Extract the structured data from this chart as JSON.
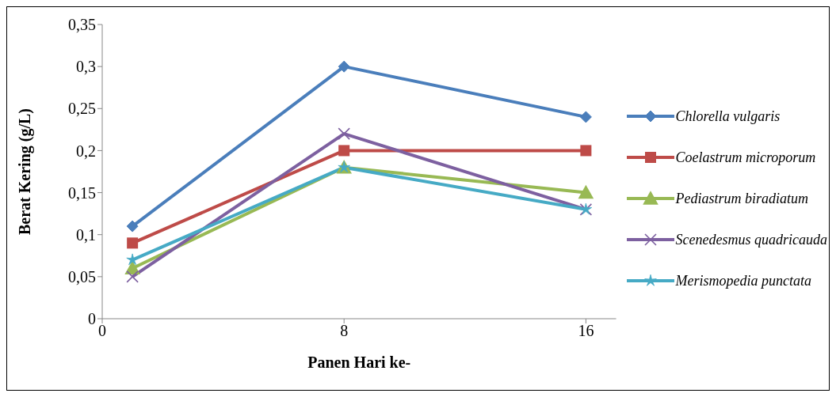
{
  "chart_data": {
    "type": "line",
    "xlabel": "Panen Hari ke-",
    "ylabel": "Berat Kering (g/L)",
    "x": [
      1,
      8,
      16
    ],
    "series": [
      {
        "name": "Chlorella vulgaris",
        "color": "#4a7ebb",
        "marker": "diamond",
        "values": [
          0.11,
          0.3,
          0.24
        ]
      },
      {
        "name": "Coelastrum microporum",
        "color": "#be4b48",
        "marker": "square",
        "values": [
          0.09,
          0.2,
          0.2
        ]
      },
      {
        "name": "Pediastrum biradiatum",
        "color": "#98b954",
        "marker": "triangle",
        "values": [
          0.06,
          0.18,
          0.15
        ]
      },
      {
        "name": "Scenedesmus quadricauda",
        "color": "#7d60a0",
        "marker": "cross",
        "values": [
          0.05,
          0.22,
          0.13
        ]
      },
      {
        "name": "Merismopedia punctata",
        "color": "#46aac5",
        "marker": "star",
        "values": [
          0.07,
          0.18,
          0.13
        ]
      }
    ],
    "xlim": [
      0,
      17
    ],
    "xticks": [
      0,
      8,
      16
    ],
    "ylim": [
      0,
      0.35
    ],
    "yticks": [
      0,
      {
        "value": 0.05,
        "label": "0,05"
      },
      {
        "value": 0.1,
        "label": "0,1"
      },
      {
        "value": 0.15,
        "label": "0,15"
      },
      {
        "value": 0.2,
        "label": "0,2"
      },
      {
        "value": 0.25,
        "label": "0,25"
      },
      {
        "value": 0.3,
        "label": "0,3"
      },
      {
        "value": 0.35,
        "label": "0,35"
      }
    ],
    "grid": false,
    "legend": "right",
    "line_style": "solid"
  }
}
